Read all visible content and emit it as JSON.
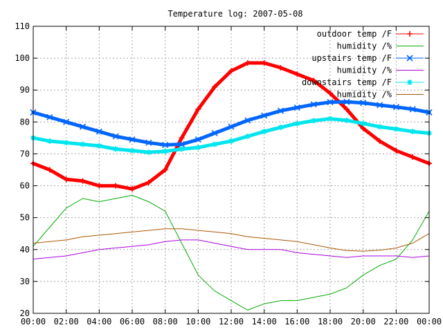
{
  "chart_data": {
    "type": "line",
    "title": "Temperature log: 2007-05-08",
    "xlabel": "",
    "ylabel": "",
    "xlim": [
      0,
      24
    ],
    "ylim": [
      20,
      110
    ],
    "grid": true,
    "legend_position": "top-right",
    "xticks": [
      "00:00",
      "02:00",
      "04:00",
      "06:00",
      "08:00",
      "10:00",
      "12:00",
      "14:00",
      "16:00",
      "18:00",
      "20:00",
      "22:00",
      "00:00"
    ],
    "yticks": [
      20,
      30,
      40,
      50,
      60,
      70,
      80,
      90,
      100,
      110
    ],
    "x": [
      0,
      1,
      2,
      3,
      4,
      5,
      6,
      7,
      8,
      9,
      10,
      11,
      12,
      13,
      14,
      15,
      16,
      17,
      18,
      19,
      20,
      21,
      22,
      23,
      24
    ],
    "series": [
      {
        "name": "outdoor temp /F",
        "color": "#ff0000",
        "marker": "plus",
        "values": [
          67,
          65,
          62,
          61.5,
          60,
          60,
          59,
          61,
          65,
          75,
          84,
          91,
          96,
          98.5,
          98.5,
          97,
          95,
          93,
          89,
          84,
          78,
          74,
          71,
          69,
          67
        ]
      },
      {
        "name": "humidity /%",
        "color": "#00aa00",
        "marker": "none",
        "values": [
          41,
          47,
          53,
          56,
          55,
          56,
          57,
          55,
          52,
          42,
          32,
          27,
          24,
          21,
          23,
          24,
          24,
          25,
          26,
          28,
          32,
          35,
          37,
          43,
          52
        ]
      },
      {
        "name": "upstairs temp /F",
        "color": "#0066ff",
        "marker": "x",
        "values": [
          83,
          81.5,
          80,
          78.5,
          77,
          75.5,
          74.5,
          73.5,
          72.8,
          73,
          74.5,
          76.5,
          78.5,
          80.5,
          82,
          83.5,
          84.5,
          85.5,
          86.2,
          86.3,
          86,
          85.3,
          84.7,
          84,
          83
        ]
      },
      {
        "name": "humidity /%",
        "color": "#aa00dd",
        "marker": "none",
        "values": [
          37,
          37.5,
          38,
          39,
          40,
          40.5,
          41,
          41.5,
          42.5,
          43,
          43,
          42,
          41,
          40,
          40,
          40,
          39,
          38.5,
          38,
          37.5,
          38,
          38,
          38,
          37.5,
          38
        ]
      },
      {
        "name": "downstairs temp /F",
        "color": "#00e5ee",
        "marker": "star",
        "values": [
          75,
          74,
          73.5,
          73,
          72.5,
          71.5,
          71,
          70.5,
          70.8,
          71.5,
          72,
          73,
          74,
          75.5,
          77,
          78.3,
          79.5,
          80.4,
          81,
          80.5,
          79.5,
          78.5,
          77.8,
          77,
          76.5
        ]
      },
      {
        "name": "humidity /%",
        "color": "#aa5500",
        "marker": "none",
        "values": [
          42,
          42.5,
          43,
          44,
          44.5,
          45,
          45.5,
          46,
          46.5,
          46.5,
          46,
          45.5,
          45,
          44,
          43.5,
          43,
          42.5,
          41.5,
          40.5,
          39.7,
          39.5,
          39.8,
          40.5,
          42,
          45
        ]
      }
    ]
  }
}
